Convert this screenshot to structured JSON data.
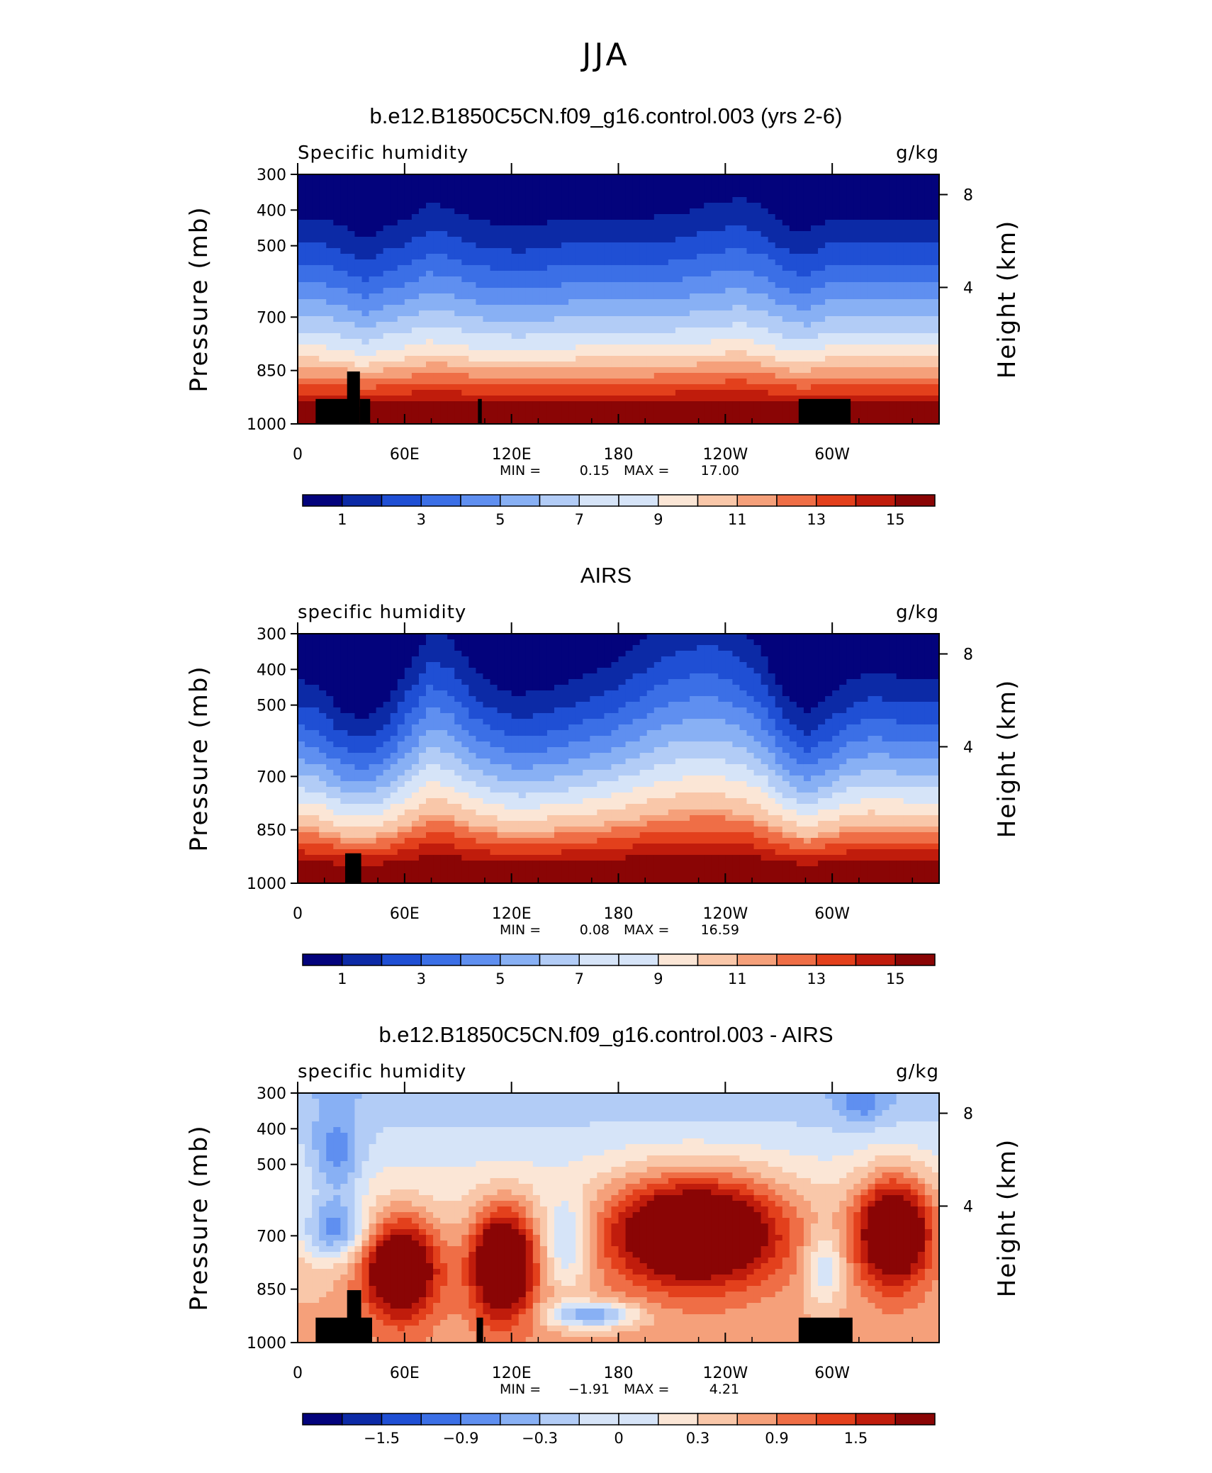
{
  "main_title": "JJA",
  "colors": {
    "palette": [
      "#03037c",
      "#0c2aa6",
      "#1f4fd4",
      "#3b6fe6",
      "#5f8ff0",
      "#88b0f4",
      "#b2ccf6",
      "#d6e4f8",
      "#fbe6d6",
      "#f9c7a9",
      "#f5a07a",
      "#ef6e46",
      "#e3401c",
      "#c01c0c",
      "#8a0505"
    ],
    "land": "#000000"
  },
  "chart_data": [
    {
      "type": "heatmap",
      "title": "b.e12.B1850C5CN.f09_g16.control.003 (yrs 2-6)",
      "left_label": "Specific humidity",
      "right_label": "g/kg",
      "xlabel": "",
      "ylabel": "Pressure (mb)",
      "ylabel_right": "Height (km)",
      "x_ticks": [
        "0",
        "60E",
        "120E",
        "180",
        "120W",
        "60W"
      ],
      "y_ticks": [
        "300",
        "400",
        "500",
        "700",
        "850",
        "1000"
      ],
      "y_ticks_right": [
        "8",
        "4"
      ],
      "stats": {
        "min_label": "MIN =",
        "min": "0.15",
        "max_label": "MAX =",
        "max": "17.00"
      },
      "colorbar": {
        "labels": [
          "1",
          "3",
          "5",
          "7",
          "9",
          "11",
          "13",
          "15"
        ],
        "levels": 16
      },
      "surface_profile": [
        0,
        0,
        0.3,
        0.9,
        0.3,
        0,
        -0.5,
        -0.3,
        0.1,
        0.2,
        0.4,
        0.2,
        0.1,
        0,
        0,
        0,
        0,
        -0.1,
        -0.3,
        -0.5,
        -0.6,
        -0.4,
        0.3,
        0.6,
        0,
        0,
        0,
        0,
        0,
        0
      ],
      "profile_amp": 1.1,
      "band_mode": "uniform"
    },
    {
      "type": "heatmap",
      "title": "AIRS",
      "left_label": "specific humidity",
      "right_label": "g/kg",
      "xlabel": "",
      "ylabel": "Pressure (mb)",
      "ylabel_right": "Height (km)",
      "x_ticks": [
        "0",
        "60E",
        "120E",
        "180",
        "120W",
        "60W"
      ],
      "y_ticks": [
        "300",
        "400",
        "500",
        "700",
        "850",
        "1000"
      ],
      "y_ticks_right": [
        "8",
        "4"
      ],
      "stats": {
        "min_label": "MIN =",
        "min": "0.08",
        "max_label": "MAX =",
        "max": "16.59"
      },
      "colorbar": {
        "labels": [
          "1",
          "3",
          "5",
          "7",
          "9",
          "11",
          "13",
          "15"
        ],
        "levels": 16
      },
      "surface_profile": [
        0,
        0.2,
        0.9,
        1.2,
        0.6,
        -0.3,
        -1.0,
        -0.8,
        -0.2,
        0.2,
        0.4,
        0.3,
        0.1,
        -0.1,
        -0.3,
        -0.6,
        -0.9,
        -1.1,
        -1.2,
        -1.2,
        -1.0,
        -0.6,
        0.4,
        1.0,
        0.5,
        0,
        -0.2,
        -0.1,
        0,
        0
      ],
      "profile_amp": 1.6,
      "band_mode": "sharp"
    },
    {
      "type": "heatmap",
      "title": "b.e12.B1850C5CN.f09_g16.control.003 - AIRS",
      "left_label": "specific humidity",
      "right_label": "g/kg",
      "xlabel": "",
      "ylabel": "Pressure (mb)",
      "ylabel_right": "Height (km)",
      "x_ticks": [
        "0",
        "60E",
        "120E",
        "180",
        "120W",
        "60W"
      ],
      "y_ticks": [
        "300",
        "400",
        "500",
        "700",
        "850",
        "1000"
      ],
      "y_ticks_right": [
        "8",
        "4"
      ],
      "stats": {
        "min_label": "MIN =",
        "min": "−1.91",
        "max_label": "MAX =",
        "max": "4.21"
      },
      "colorbar": {
        "labels": [
          "−1.5",
          "−0.9",
          "−0.3",
          "0",
          "0.3",
          "0.9",
          "1.5"
        ],
        "levels": 16
      },
      "band_mode": "difference"
    }
  ]
}
